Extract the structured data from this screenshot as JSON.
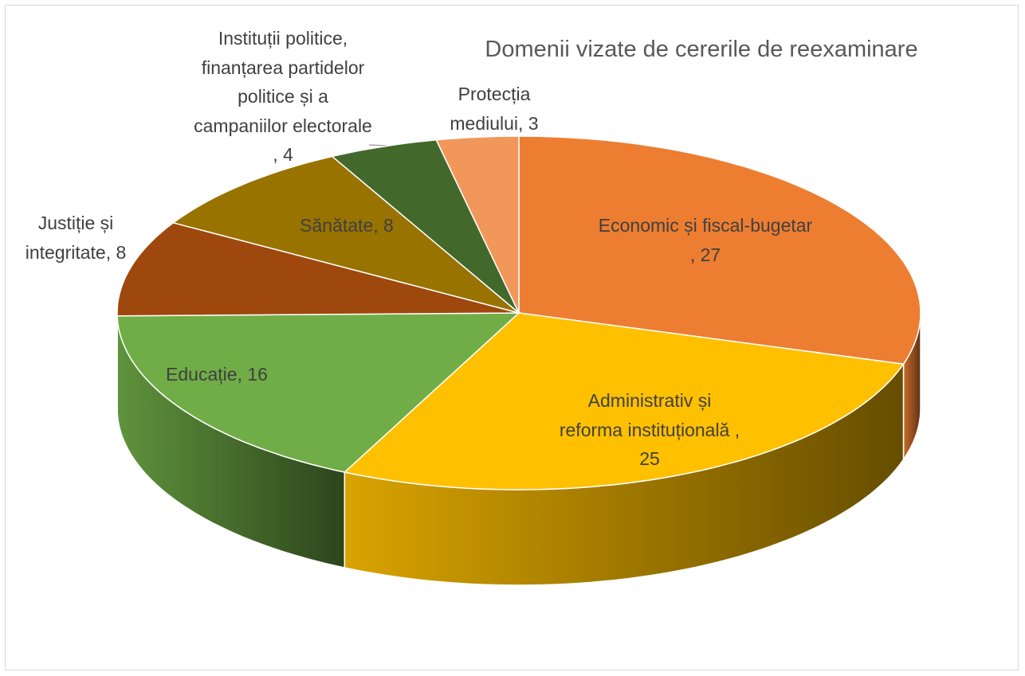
{
  "chart_data": {
    "type": "pie3d",
    "title": "Domenii vizate de cererile de reexaminare",
    "categories": [
      "Economic și fiscal-bugetar ",
      "Administrativ și reforma instituțională ",
      "Educație",
      "Justiție și integritate",
      "Sănătate",
      "Instituții politice, finanțarea partidelor politice și a campaniilor electorale ",
      "Protecția mediului"
    ],
    "values": [
      27,
      25,
      16,
      8,
      8,
      4,
      3
    ],
    "value_labels": [
      ", 27",
      ", 25",
      ", 16",
      ", 8",
      ", 8",
      ", 4",
      ", 3"
    ],
    "colors": [
      "#ED7D31",
      "#FFC000",
      "#70AD47",
      "#9E480E",
      "#997300",
      "#43682B",
      "#F1975A"
    ]
  }
}
